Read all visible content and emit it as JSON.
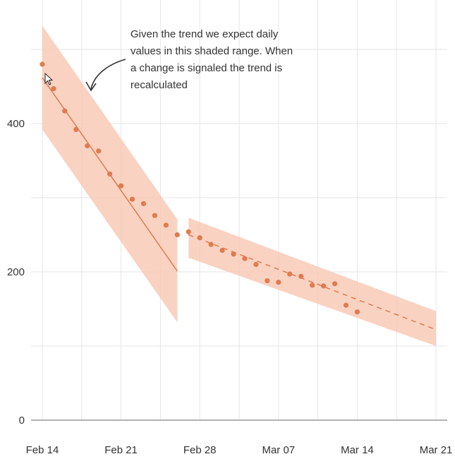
{
  "chart_data": {
    "type": "scatter",
    "title": "",
    "xlabel": "",
    "ylabel": "",
    "x_ticks": [
      "Feb 14",
      "Feb 21",
      "Feb 28",
      "Mar 07",
      "Mar 14",
      "Mar 21"
    ],
    "y_ticks": [
      "0",
      "200",
      "400"
    ],
    "xlim": [
      "2022-02-13",
      "2022-03-22"
    ],
    "ylim": [
      0,
      560
    ],
    "grid": true,
    "colors": {
      "points": "#e07b4f",
      "band": "#f9c7b3",
      "line": "#e07b4f",
      "grid": "#e6e6e6",
      "baseline": "#999999"
    },
    "points": [
      {
        "date": "2022-02-14",
        "value": 480
      },
      {
        "date": "2022-02-15",
        "value": 447
      },
      {
        "date": "2022-02-16",
        "value": 417
      },
      {
        "date": "2022-02-17",
        "value": 392
      },
      {
        "date": "2022-02-18",
        "value": 370
      },
      {
        "date": "2022-02-19",
        "value": 363
      },
      {
        "date": "2022-02-20",
        "value": 332
      },
      {
        "date": "2022-02-21",
        "value": 316
      },
      {
        "date": "2022-02-22",
        "value": 298
      },
      {
        "date": "2022-02-23",
        "value": 292
      },
      {
        "date": "2022-02-24",
        "value": 276
      },
      {
        "date": "2022-02-25",
        "value": 263
      },
      {
        "date": "2022-02-26",
        "value": 250
      },
      {
        "date": "2022-02-27",
        "value": 254
      },
      {
        "date": "2022-02-28",
        "value": 246
      },
      {
        "date": "2022-03-01",
        "value": 237
      },
      {
        "date": "2022-03-02",
        "value": 229
      },
      {
        "date": "2022-03-03",
        "value": 224
      },
      {
        "date": "2022-03-04",
        "value": 218
      },
      {
        "date": "2022-03-05",
        "value": 210
      },
      {
        "date": "2022-03-06",
        "value": 188
      },
      {
        "date": "2022-03-07",
        "value": 186
      },
      {
        "date": "2022-03-08",
        "value": 197
      },
      {
        "date": "2022-03-09",
        "value": 194
      },
      {
        "date": "2022-03-10",
        "value": 182
      },
      {
        "date": "2022-03-11",
        "value": 181
      },
      {
        "date": "2022-03-12",
        "value": 184
      },
      {
        "date": "2022-03-13",
        "value": 155
      },
      {
        "date": "2022-03-14",
        "value": 146
      }
    ],
    "trends": [
      {
        "segment": 1,
        "style": "solid",
        "start": {
          "date": "2022-02-14",
          "value": 462
        },
        "end": {
          "date": "2022-02-26",
          "value": 201
        },
        "band_start": {
          "low": 392,
          "high": 532
        },
        "band_end": {
          "low": 132,
          "high": 271
        }
      },
      {
        "segment": 2,
        "style": "dashed",
        "start": {
          "date": "2022-02-27",
          "value": 250
        },
        "end": {
          "date": "2022-03-21",
          "value": 122
        },
        "band_start": {
          "low": 219,
          "high": 273
        },
        "band_end": {
          "low": 100,
          "high": 147
        }
      }
    ],
    "annotation": {
      "lines": [
        "Given the trend we expect daily",
        "values in this shaded range. When",
        "a change is signaled the trend is",
        "recalculated"
      ]
    }
  }
}
